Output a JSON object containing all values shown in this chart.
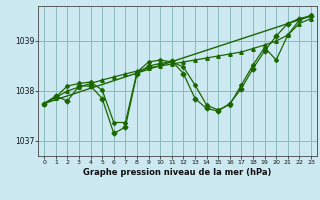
{
  "xlabel": "Graphe pression niveau de la mer (hPa)",
  "background_color": "#cce8f0",
  "plot_bg_color": "#cce8f0",
  "grid_color": "#88bbbb",
  "line_color": "#1a6600",
  "xlim": [
    -0.5,
    23.5
  ],
  "ylim": [
    1036.7,
    1039.7
  ],
  "yticks": [
    1037,
    1038,
    1039
  ],
  "xticks": [
    0,
    1,
    2,
    3,
    4,
    5,
    6,
    7,
    8,
    9,
    10,
    11,
    12,
    13,
    14,
    15,
    16,
    17,
    18,
    19,
    20,
    21,
    22,
    23
  ],
  "line1_x": [
    0,
    1,
    2,
    3,
    4,
    5,
    6,
    7,
    8,
    9,
    10,
    11,
    12,
    13,
    14,
    15,
    16,
    17,
    18,
    19,
    20,
    21,
    22,
    23
  ],
  "line1_y": [
    1037.75,
    1037.9,
    1037.8,
    1038.1,
    1038.1,
    1037.85,
    1037.15,
    1037.28,
    1038.35,
    1038.5,
    1038.55,
    1038.6,
    1038.35,
    1037.85,
    1037.65,
    1037.6,
    1037.75,
    1038.05,
    1038.45,
    1038.8,
    1039.1,
    1039.35,
    1039.45,
    1039.5
  ],
  "line2_x": [
    0,
    1,
    2,
    3,
    4,
    5,
    6,
    7,
    8,
    9,
    10,
    11,
    12,
    13,
    14,
    15,
    16,
    17,
    18,
    19,
    20,
    21,
    22,
    23
  ],
  "line2_y": [
    1037.75,
    1037.87,
    1038.0,
    1038.08,
    1038.15,
    1038.22,
    1038.28,
    1038.34,
    1038.4,
    1038.46,
    1038.5,
    1038.54,
    1038.58,
    1038.62,
    1038.66,
    1038.7,
    1038.74,
    1038.78,
    1038.85,
    1038.92,
    1039.0,
    1039.12,
    1039.35,
    1039.45
  ],
  "line3_x": [
    0,
    1,
    2,
    3,
    4,
    5,
    6,
    7,
    8,
    9,
    10,
    11,
    12,
    13,
    14,
    15,
    16,
    17,
    18,
    19,
    20,
    21,
    22,
    23
  ],
  "line3_y": [
    1037.75,
    1037.88,
    1038.1,
    1038.15,
    1038.18,
    1038.02,
    1037.37,
    1037.37,
    1038.38,
    1038.58,
    1038.62,
    1038.58,
    1038.48,
    1038.12,
    1037.72,
    1037.62,
    1037.73,
    1038.12,
    1038.52,
    1038.87,
    1038.62,
    1039.12,
    1039.42,
    1039.52
  ],
  "line4_x": [
    0,
    23
  ],
  "line4_y": [
    1037.75,
    1039.5
  ]
}
